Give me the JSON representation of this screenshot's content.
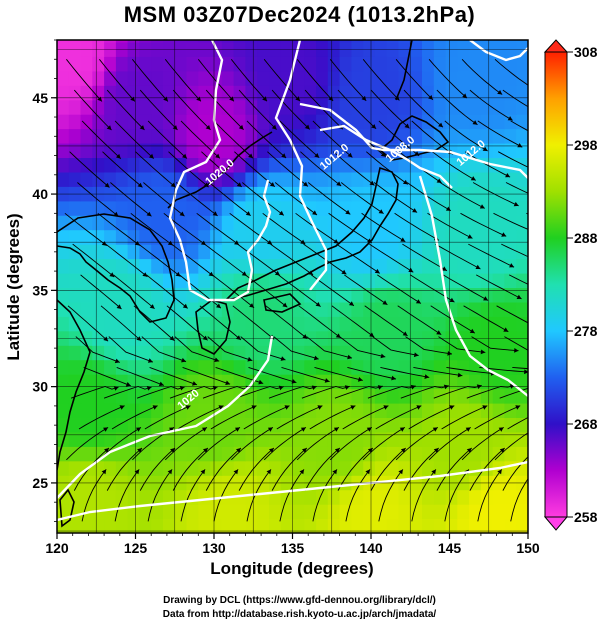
{
  "title": "MSM 03Z07Dec2024 (1013.2hPa)",
  "x_axis": {
    "label": "Longitude (degrees)",
    "range": [
      120,
      150
    ],
    "ticks": [
      "120",
      "125",
      "130",
      "135",
      "140",
      "145",
      "150"
    ],
    "tick_values": [
      120,
      125,
      130,
      135,
      140,
      145,
      150
    ]
  },
  "y_axis": {
    "label": "Latitude  (degrees)",
    "range": [
      22.4,
      48
    ],
    "ticks": [
      "25",
      "30",
      "35",
      "40",
      "45"
    ],
    "tick_values": [
      25,
      30,
      35,
      40,
      45
    ]
  },
  "colorbar": {
    "ticks": [
      "258",
      "268",
      "278",
      "288",
      "298",
      "308"
    ],
    "tick_values": [
      258,
      268,
      278,
      288,
      298,
      308
    ],
    "range": [
      258,
      308
    ],
    "colors": [
      "#ff3ce0",
      "#b000d0",
      "#3010c8",
      "#2060f0",
      "#20c8ff",
      "#20e0b0",
      "#20d020",
      "#a0e000",
      "#f0f000",
      "#ffa000",
      "#ff2000"
    ]
  },
  "isobars": [
    {
      "label": "1020.0",
      "lon": 130.5,
      "lat": 41.0
    },
    {
      "label": "1012.0",
      "lon": 137.8,
      "lat": 41.8
    },
    {
      "label": "1008.0",
      "lon": 142.0,
      "lat": 42.2
    },
    {
      "label": "1012.0",
      "lon": 146.5,
      "lat": 42.0
    },
    {
      "label": "1020",
      "lon": 128.5,
      "lat": 29.2
    }
  ],
  "credits": {
    "line1": "Drawing by DCL (https://www.gfd-dennou.org/library/dcl/)",
    "line2": "Data from http://database.rish.kyoto-u.ac.jp/arch/jmadata/"
  },
  "chart_data": {
    "type": "heatmap",
    "title": "MSM 03Z07Dec2024 (1013.2hPa)",
    "xlabel": "Longitude (degrees)",
    "ylabel": "Latitude  (degrees)",
    "xlim": [
      120,
      150
    ],
    "ylim": [
      22.4,
      48
    ],
    "colorbar_range": [
      258,
      308
    ],
    "colorbar_ticks": [
      258,
      268,
      278,
      288,
      298,
      308
    ],
    "grid": true,
    "overlays": [
      "wind streamlines",
      "isobars (hPa)",
      "coastlines"
    ],
    "field_samples": [
      {
        "lon": 121,
        "lat": 47,
        "value": 259
      },
      {
        "lon": 125,
        "lat": 45,
        "value": 266
      },
      {
        "lon": 130,
        "lat": 43,
        "value": 263
      },
      {
        "lon": 135,
        "lat": 46,
        "value": 267
      },
      {
        "lon": 140,
        "lat": 45,
        "value": 271
      },
      {
        "lon": 147,
        "lat": 46,
        "value": 275
      },
      {
        "lon": 127,
        "lat": 39,
        "value": 273
      },
      {
        "lon": 133,
        "lat": 38,
        "value": 279
      },
      {
        "lon": 140,
        "lat": 38,
        "value": 278
      },
      {
        "lon": 147,
        "lat": 38,
        "value": 282
      },
      {
        "lon": 124,
        "lat": 34,
        "value": 282
      },
      {
        "lon": 133,
        "lat": 34,
        "value": 285
      },
      {
        "lon": 141,
        "lat": 33,
        "value": 286
      },
      {
        "lon": 148,
        "lat": 32,
        "value": 288
      },
      {
        "lon": 122,
        "lat": 29,
        "value": 288
      },
      {
        "lon": 130,
        "lat": 28,
        "value": 291
      },
      {
        "lon": 138,
        "lat": 27,
        "value": 292
      },
      {
        "lon": 146,
        "lat": 27,
        "value": 293
      },
      {
        "lon": 122,
        "lat": 24,
        "value": 294
      },
      {
        "lon": 131,
        "lat": 23.5,
        "value": 296
      },
      {
        "lon": 140,
        "lat": 23.5,
        "value": 297
      },
      {
        "lon": 148,
        "lat": 23.5,
        "value": 298
      }
    ]
  }
}
